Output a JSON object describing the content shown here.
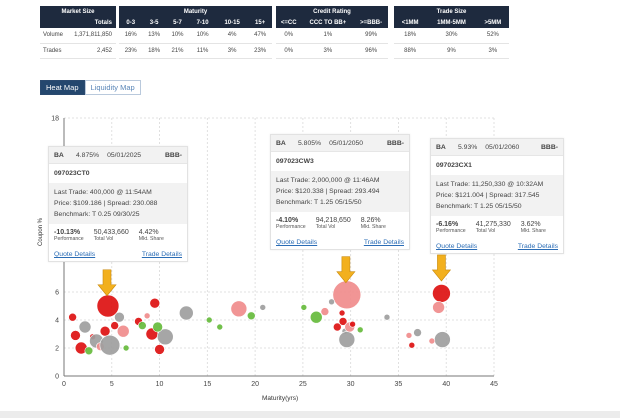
{
  "summary": {
    "market": {
      "header": "Market Size",
      "sub": "Totals",
      "rows": [
        {
          "label": "Volume",
          "value": "1,371,811,850"
        },
        {
          "label": "Trades",
          "value": "2,452"
        }
      ]
    },
    "maturity": {
      "header": "Maturity",
      "cols": [
        "0-3",
        "3-5",
        "5-7",
        "7-10",
        "10-15",
        "15+"
      ],
      "rows": [
        [
          "16%",
          "13%",
          "10%",
          "10%",
          "4%",
          "47%"
        ],
        [
          "23%",
          "18%",
          "21%",
          "11%",
          "3%",
          "23%"
        ]
      ]
    },
    "credit": {
      "header": "Credit Rating",
      "cols": [
        "<=CC",
        "CCC TO BB+",
        ">=BBB-"
      ],
      "rows": [
        [
          "0%",
          "1%",
          "99%"
        ],
        [
          "0%",
          "3%",
          "96%"
        ]
      ]
    },
    "trade": {
      "header": "Trade Size",
      "cols": [
        "<1MM",
        "1MM-5MM",
        ">5MM"
      ],
      "rows": [
        [
          "18%",
          "30%",
          "52%"
        ],
        [
          "88%",
          "9%",
          "3%"
        ]
      ]
    }
  },
  "toggle": {
    "heat": "Heat Map",
    "liquidity": "Liquidity Map"
  },
  "axes": {
    "ylabel": "Coupon %",
    "xlabel": "Maturity(yrs)"
  },
  "cards": [
    {
      "ticker": "BA",
      "coupon": "4.875%",
      "maturity": "05/01/2025",
      "rating": "BBB-",
      "cusip": "097023CT0",
      "last_trade": "Last Trade: 400,000 @ 11:54AM",
      "price": "Price: $109.186 | Spread: 230.088",
      "benchmark": "Benchmark: T 0.25 09/30/25",
      "perf": "-10.13%",
      "vol": "50,433,660",
      "share": "4.42%",
      "perf_label": "Performance",
      "vol_label": "Total Vol",
      "share_label": "Mkt. Share",
      "quote": "Quote Details",
      "trade": "Trade Details"
    },
    {
      "ticker": "BA",
      "coupon": "5.805%",
      "maturity": "05/01/2050",
      "rating": "BBB-",
      "cusip": "097023CW3",
      "last_trade": "Last Trade: 2,000,000 @ 11:46AM",
      "price": "Price: $120.338 | Spread: 293.494",
      "benchmark": "Benchmark: T 1.25 05/15/50",
      "perf": "-4.10%",
      "vol": "94,218,650",
      "share": "8.26%",
      "perf_label": "Performance",
      "vol_label": "Total Vol",
      "share_label": "Mkt. Share",
      "quote": "Quote Details",
      "trade": "Trade Details"
    },
    {
      "ticker": "BA",
      "coupon": "5.93%",
      "maturity": "05/01/2060",
      "rating": "BBB-",
      "cusip": "097023CX1",
      "last_trade": "Last Trade: 11,250,330 @ 10:32AM",
      "price": "Price: $121.004 | Spread: 317.545",
      "benchmark": "Benchmark: T 1.25 05/15/50",
      "perf": "-6.16%",
      "vol": "41,275,330",
      "share": "3.62%",
      "perf_label": "Performance",
      "vol_label": "Total Vol",
      "share_label": "Mkt. Share",
      "quote": "Quote Details",
      "trade": "Trade Details"
    }
  ],
  "colors": {
    "header_bg": "#1e2a3e",
    "red": "#dd1111",
    "pink": "#f08c8c",
    "green": "#66bb3c",
    "gray": "#9e9e9e",
    "arrow": "#f2b01e",
    "link": "#2a6cb5"
  },
  "chart_data": {
    "type": "scatter",
    "xlabel": "Maturity(yrs)",
    "ylabel": "Coupon %",
    "xlim": [
      0,
      45
    ],
    "ylim": [
      0,
      18
    ],
    "xticks": [
      0,
      5,
      10,
      15,
      20,
      25,
      30,
      35,
      40,
      45
    ],
    "yticks": [
      0,
      2,
      4,
      6,
      18
    ],
    "grid": true,
    "highlighted": [
      {
        "x": 4.5,
        "y": 4.875
      },
      {
        "x": 29.5,
        "y": 5.805
      },
      {
        "x": 39.5,
        "y": 5.93
      }
    ],
    "points": [
      {
        "x": 4.6,
        "y": 5.0,
        "s": 11,
        "c": "red"
      },
      {
        "x": 29.6,
        "y": 5.8,
        "s": 14,
        "c": "pink"
      },
      {
        "x": 39.5,
        "y": 5.9,
        "s": 9,
        "c": "red"
      },
      {
        "x": 39.2,
        "y": 4.9,
        "s": 6,
        "c": "pink"
      },
      {
        "x": 39.6,
        "y": 2.6,
        "s": 8,
        "c": "gray"
      },
      {
        "x": 38.5,
        "y": 2.5,
        "s": 3,
        "c": "pink"
      },
      {
        "x": 0.9,
        "y": 4.2,
        "s": 4,
        "c": "red"
      },
      {
        "x": 1.2,
        "y": 2.9,
        "s": 5,
        "c": "red"
      },
      {
        "x": 1.8,
        "y": 2.0,
        "s": 6,
        "c": "red"
      },
      {
        "x": 2.2,
        "y": 3.5,
        "s": 6,
        "c": "gray"
      },
      {
        "x": 2.6,
        "y": 1.8,
        "s": 4,
        "c": "green"
      },
      {
        "x": 3.0,
        "y": 2.8,
        "s": 3,
        "c": "red"
      },
      {
        "x": 3.4,
        "y": 2.5,
        "s": 7,
        "c": "gray"
      },
      {
        "x": 3.8,
        "y": 2.1,
        "s": 4,
        "c": "pink"
      },
      {
        "x": 4.3,
        "y": 3.2,
        "s": 5,
        "c": "red"
      },
      {
        "x": 4.8,
        "y": 2.2,
        "s": 10,
        "c": "gray"
      },
      {
        "x": 5.3,
        "y": 3.6,
        "s": 4,
        "c": "red"
      },
      {
        "x": 5.8,
        "y": 4.2,
        "s": 5,
        "c": "gray"
      },
      {
        "x": 6.2,
        "y": 3.2,
        "s": 6,
        "c": "pink"
      },
      {
        "x": 6.5,
        "y": 2.0,
        "s": 3,
        "c": "green"
      },
      {
        "x": 7.8,
        "y": 3.9,
        "s": 4,
        "c": "red"
      },
      {
        "x": 8.2,
        "y": 3.6,
        "s": 4,
        "c": "green"
      },
      {
        "x": 8.7,
        "y": 4.3,
        "s": 3,
        "c": "pink"
      },
      {
        "x": 9.2,
        "y": 3.0,
        "s": 6,
        "c": "red"
      },
      {
        "x": 9.5,
        "y": 5.2,
        "s": 5,
        "c": "red"
      },
      {
        "x": 10.0,
        "y": 1.9,
        "s": 5,
        "c": "red"
      },
      {
        "x": 10.6,
        "y": 2.8,
        "s": 8,
        "c": "gray"
      },
      {
        "x": 9.8,
        "y": 3.5,
        "s": 5,
        "c": "green"
      },
      {
        "x": 12.8,
        "y": 4.5,
        "s": 7,
        "c": "gray"
      },
      {
        "x": 15.2,
        "y": 4.0,
        "s": 3,
        "c": "green"
      },
      {
        "x": 16.3,
        "y": 3.5,
        "s": 3,
        "c": "green"
      },
      {
        "x": 18.3,
        "y": 4.8,
        "s": 8,
        "c": "pink"
      },
      {
        "x": 19.6,
        "y": 4.3,
        "s": 4,
        "c": "green"
      },
      {
        "x": 20.8,
        "y": 4.9,
        "s": 3,
        "c": "gray"
      },
      {
        "x": 25.1,
        "y": 4.9,
        "s": 3,
        "c": "green"
      },
      {
        "x": 26.4,
        "y": 4.2,
        "s": 6,
        "c": "green"
      },
      {
        "x": 27.3,
        "y": 4.6,
        "s": 4,
        "c": "pink"
      },
      {
        "x": 28.0,
        "y": 5.3,
        "s": 3,
        "c": "gray"
      },
      {
        "x": 28.6,
        "y": 3.5,
        "s": 4,
        "c": "red"
      },
      {
        "x": 29.1,
        "y": 4.5,
        "s": 3,
        "c": "red"
      },
      {
        "x": 29.2,
        "y": 3.9,
        "s": 4,
        "c": "red"
      },
      {
        "x": 29.4,
        "y": 3.2,
        "s": 3,
        "c": "gray"
      },
      {
        "x": 29.6,
        "y": 2.6,
        "s": 8,
        "c": "gray"
      },
      {
        "x": 29.9,
        "y": 3.5,
        "s": 5,
        "c": "pink"
      },
      {
        "x": 30.2,
        "y": 3.7,
        "s": 3,
        "c": "red"
      },
      {
        "x": 31.0,
        "y": 3.3,
        "s": 3,
        "c": "green"
      },
      {
        "x": 33.8,
        "y": 4.2,
        "s": 3,
        "c": "gray"
      },
      {
        "x": 36.1,
        "y": 2.9,
        "s": 3,
        "c": "pink"
      },
      {
        "x": 36.4,
        "y": 2.2,
        "s": 3,
        "c": "red"
      },
      {
        "x": 37.0,
        "y": 3.1,
        "s": 4,
        "c": "gray"
      }
    ]
  }
}
